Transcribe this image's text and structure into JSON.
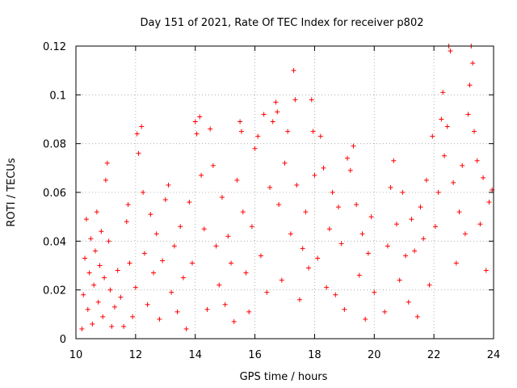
{
  "chart_data": {
    "type": "scatter",
    "title": "Day 151 of 2021, Rate Of TEC Index for receiver p802",
    "xlabel": "GPS time / hours",
    "ylabel": "ROTI / TECUs",
    "xlim": [
      10,
      24
    ],
    "ylim": [
      0,
      0.12
    ],
    "x_ticks": [
      10,
      12,
      14,
      16,
      18,
      20,
      22,
      24
    ],
    "x_tick_labels": [
      "10",
      "12",
      "14",
      "16",
      "18",
      "20",
      "22",
      "24"
    ],
    "y_ticks": [
      0,
      0.02,
      0.04,
      0.06,
      0.08,
      0.1,
      0.12
    ],
    "y_tick_labels": [
      "0",
      "0.02",
      "0.04",
      "0.06",
      "0.08",
      "0.1",
      "0.12"
    ],
    "grid": true,
    "marker": "+",
    "marker_color": "#ff0000",
    "data_gap_hours": [
      20.05,
      20.3
    ],
    "series": [
      {
        "points": [
          [
            10.2,
            0.004
          ],
          [
            10.25,
            0.018
          ],
          [
            10.3,
            0.033
          ],
          [
            10.35,
            0.049
          ],
          [
            10.4,
            0.012
          ],
          [
            10.45,
            0.027
          ],
          [
            10.5,
            0.041
          ],
          [
            10.55,
            0.006
          ],
          [
            10.6,
            0.022
          ],
          [
            10.65,
            0.036
          ],
          [
            10.7,
            0.052
          ],
          [
            10.75,
            0.015
          ],
          [
            10.8,
            0.03
          ],
          [
            10.85,
            0.044
          ],
          [
            10.9,
            0.009
          ],
          [
            10.95,
            0.025
          ],
          [
            11.0,
            0.065
          ],
          [
            11.05,
            0.072
          ],
          [
            11.1,
            0.04
          ],
          [
            11.15,
            0.02
          ],
          [
            11.2,
            0.005
          ],
          [
            11.3,
            0.013
          ],
          [
            11.4,
            0.028
          ],
          [
            11.5,
            0.017
          ],
          [
            11.6,
            0.005
          ],
          [
            11.7,
            0.048
          ],
          [
            11.75,
            0.055
          ],
          [
            11.8,
            0.031
          ],
          [
            11.9,
            0.009
          ],
          [
            12.0,
            0.021
          ],
          [
            12.05,
            0.084
          ],
          [
            12.1,
            0.076
          ],
          [
            12.2,
            0.087
          ],
          [
            12.25,
            0.06
          ],
          [
            12.3,
            0.035
          ],
          [
            12.4,
            0.014
          ],
          [
            12.5,
            0.051
          ],
          [
            12.6,
            0.027
          ],
          [
            12.7,
            0.043
          ],
          [
            12.8,
            0.008
          ],
          [
            12.9,
            0.032
          ],
          [
            13.0,
            0.057
          ],
          [
            13.1,
            0.063
          ],
          [
            13.2,
            0.019
          ],
          [
            13.3,
            0.038
          ],
          [
            13.4,
            0.011
          ],
          [
            13.5,
            0.046
          ],
          [
            13.6,
            0.025
          ],
          [
            13.7,
            0.004
          ],
          [
            13.8,
            0.056
          ],
          [
            13.9,
            0.031
          ],
          [
            14.0,
            0.089
          ],
          [
            14.05,
            0.084
          ],
          [
            14.15,
            0.091
          ],
          [
            14.2,
            0.067
          ],
          [
            14.3,
            0.045
          ],
          [
            14.4,
            0.012
          ],
          [
            14.5,
            0.086
          ],
          [
            14.6,
            0.071
          ],
          [
            14.7,
            0.038
          ],
          [
            14.8,
            0.022
          ],
          [
            14.9,
            0.058
          ],
          [
            15.0,
            0.014
          ],
          [
            15.1,
            0.042
          ],
          [
            15.2,
            0.031
          ],
          [
            15.3,
            0.007
          ],
          [
            15.4,
            0.065
          ],
          [
            15.5,
            0.089
          ],
          [
            15.55,
            0.085
          ],
          [
            15.6,
            0.052
          ],
          [
            15.7,
            0.027
          ],
          [
            15.8,
            0.011
          ],
          [
            15.9,
            0.046
          ],
          [
            16.0,
            0.078
          ],
          [
            16.1,
            0.083
          ],
          [
            16.2,
            0.034
          ],
          [
            16.3,
            0.092
          ],
          [
            16.4,
            0.019
          ],
          [
            16.5,
            0.062
          ],
          [
            16.6,
            0.089
          ],
          [
            16.7,
            0.097
          ],
          [
            16.75,
            0.093
          ],
          [
            16.8,
            0.055
          ],
          [
            16.9,
            0.024
          ],
          [
            17.0,
            0.072
          ],
          [
            17.1,
            0.085
          ],
          [
            17.2,
            0.043
          ],
          [
            17.3,
            0.11
          ],
          [
            17.35,
            0.098
          ],
          [
            17.4,
            0.063
          ],
          [
            17.5,
            0.016
          ],
          [
            17.6,
            0.037
          ],
          [
            17.7,
            0.052
          ],
          [
            17.8,
            0.029
          ],
          [
            17.9,
            0.098
          ],
          [
            17.95,
            0.085
          ],
          [
            18.0,
            0.067
          ],
          [
            18.1,
            0.033
          ],
          [
            18.2,
            0.083
          ],
          [
            18.3,
            0.07
          ],
          [
            18.4,
            0.021
          ],
          [
            18.5,
            0.045
          ],
          [
            18.6,
            0.06
          ],
          [
            18.7,
            0.018
          ],
          [
            18.8,
            0.054
          ],
          [
            18.9,
            0.039
          ],
          [
            19.0,
            0.012
          ],
          [
            19.1,
            0.074
          ],
          [
            19.2,
            0.069
          ],
          [
            19.3,
            0.079
          ],
          [
            19.4,
            0.055
          ],
          [
            19.5,
            0.026
          ],
          [
            19.6,
            0.043
          ],
          [
            19.7,
            0.008
          ],
          [
            19.8,
            0.035
          ],
          [
            19.9,
            0.05
          ],
          [
            20.0,
            0.019
          ],
          [
            20.35,
            0.011
          ],
          [
            20.45,
            0.038
          ],
          [
            20.55,
            0.062
          ],
          [
            20.65,
            0.073
          ],
          [
            20.75,
            0.047
          ],
          [
            20.85,
            0.024
          ],
          [
            20.95,
            0.06
          ],
          [
            21.05,
            0.034
          ],
          [
            21.15,
            0.015
          ],
          [
            21.25,
            0.049
          ],
          [
            21.35,
            0.036
          ],
          [
            21.45,
            0.009
          ],
          [
            21.55,
            0.054
          ],
          [
            21.65,
            0.041
          ],
          [
            21.75,
            0.065
          ],
          [
            21.85,
            0.022
          ],
          [
            21.95,
            0.083
          ],
          [
            22.05,
            0.046
          ],
          [
            22.15,
            0.06
          ],
          [
            22.25,
            0.09
          ],
          [
            22.3,
            0.101
          ],
          [
            22.35,
            0.075
          ],
          [
            22.45,
            0.087
          ],
          [
            22.5,
            0.12
          ],
          [
            22.55,
            0.118
          ],
          [
            22.65,
            0.064
          ],
          [
            22.75,
            0.031
          ],
          [
            22.85,
            0.052
          ],
          [
            22.95,
            0.071
          ],
          [
            23.05,
            0.043
          ],
          [
            23.15,
            0.092
          ],
          [
            23.2,
            0.104
          ],
          [
            23.25,
            0.12
          ],
          [
            23.3,
            0.113
          ],
          [
            23.35,
            0.085
          ],
          [
            23.45,
            0.073
          ],
          [
            23.55,
            0.047
          ],
          [
            23.65,
            0.066
          ],
          [
            23.75,
            0.028
          ],
          [
            23.85,
            0.056
          ],
          [
            23.95,
            0.061
          ]
        ]
      }
    ]
  }
}
